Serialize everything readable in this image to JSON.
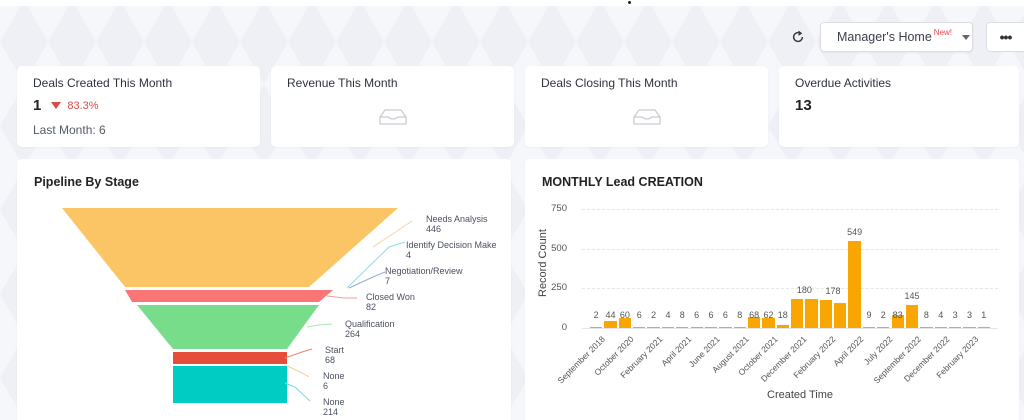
{
  "toolbar": {
    "refresh_icon": "refresh-icon",
    "view_selector": {
      "label": "Manager's Home",
      "badge": "New!"
    },
    "more_label": "•••"
  },
  "kpis": [
    {
      "title": "Deals Created This Month",
      "value": "1",
      "change": "83.3%",
      "change_direction": "down",
      "sub": "Last Month: 6"
    },
    {
      "title": "Revenue This Month",
      "empty_icon": "empty-tray-icon"
    },
    {
      "title": "Deals Closing This Month",
      "empty_icon": "empty-tray-icon"
    },
    {
      "title": "Overdue Activities",
      "value": "13"
    }
  ],
  "pipeline": {
    "title": "Pipeline By Stage",
    "stages": [
      {
        "name": "Needs Analysis",
        "value": "446",
        "color": "#fbc566"
      },
      {
        "name": "Identify Decision Make",
        "value": "4",
        "color": "#6fd3e0"
      },
      {
        "name": "Negotiation/Review",
        "value": "7",
        "color": "#7b8fd6"
      },
      {
        "name": "Closed Won",
        "value": "82",
        "color": "#fa7575"
      },
      {
        "name": "Qualification",
        "value": "264",
        "color": "#78dd8a"
      },
      {
        "name": "Start",
        "value": "68",
        "color": "#e54e3a"
      },
      {
        "name": "None",
        "value": "6",
        "color": "#f7c77b"
      },
      {
        "name": "None",
        "value": "214",
        "color": "#00ccc4"
      }
    ]
  },
  "chart_data": {
    "type": "bar",
    "title": "MONTHLY Lead CREATION",
    "xlabel": "Created Time",
    "ylabel": "Record Count",
    "ylim": [
      0,
      750
    ],
    "yticks": [
      0,
      250,
      500,
      750
    ],
    "grid": true,
    "color": "#f9a602",
    "values": [
      2,
      44,
      60,
      6,
      2,
      4,
      8,
      6,
      6,
      6,
      8,
      68,
      62,
      18,
      180,
      180,
      178,
      160,
      549,
      9,
      2,
      83,
      145,
      8,
      4,
      3,
      3,
      1
    ],
    "value_labels": [
      "2",
      "44",
      "60",
      "6",
      "2",
      "4",
      "8",
      "6",
      "6",
      "6",
      "8",
      "68",
      "62",
      "18",
      "180",
      "",
      "178",
      "",
      "549",
      "9",
      "2",
      "83",
      "145",
      "8",
      "4",
      "3",
      "3",
      "1"
    ],
    "tick_labels": [
      "September 2018",
      "October 2020",
      "February 2021",
      "April 2021",
      "June 2021",
      "August 2021",
      "October 2021",
      "December 2021",
      "February 2022",
      "April 2022",
      "July 2022",
      "September 2022",
      "December 2022",
      "February 2023"
    ],
    "tick_every": 2
  }
}
